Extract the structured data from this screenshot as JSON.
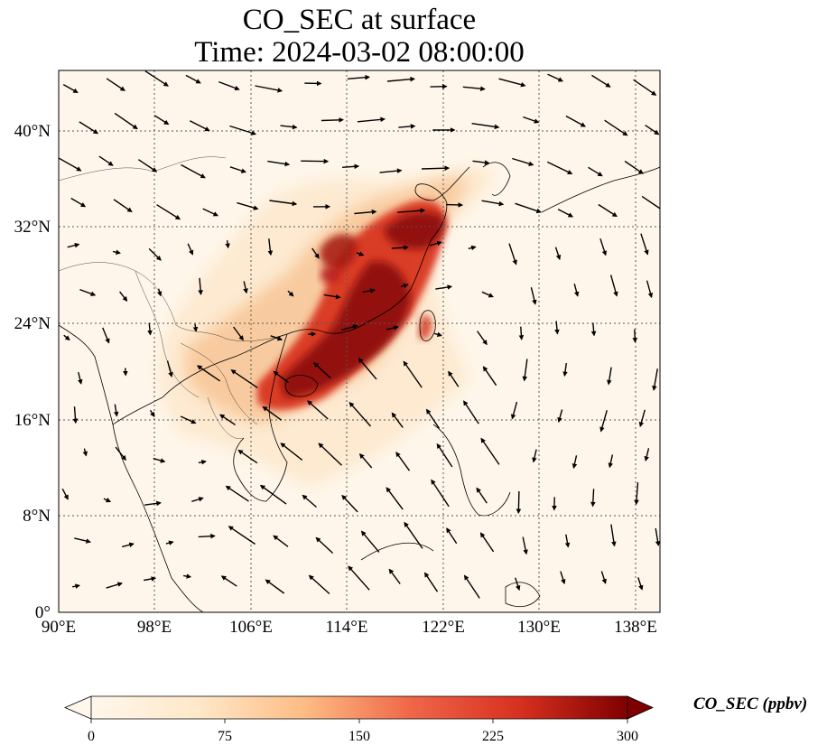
{
  "title": "CO_SEC at surface",
  "subtitle": "Time: 2024-03-02 08:00:00",
  "map": {
    "lon_range": [
      90,
      140
    ],
    "lat_range": [
      0,
      45
    ],
    "lon_ticks": [
      "90°E",
      "98°E",
      "106°E",
      "114°E",
      "122°E",
      "130°E",
      "138°E"
    ],
    "lat_ticks": [
      "0°",
      "8°N",
      "16°N",
      "24°N",
      "32°N",
      "40°N"
    ],
    "gridlines": "dotted",
    "overlay": "wind vectors",
    "colors": {
      "background": "#fef6ea",
      "low": "#fde8c8",
      "mid": "#ef7d3b",
      "high": "#7f0000",
      "coast": "#000000"
    }
  },
  "colorbar": {
    "label": "CO_SEC (ppbv)",
    "min": 0,
    "max": 300,
    "ticks": [
      "0",
      "75",
      "150",
      "225",
      "300"
    ],
    "extend": "both",
    "colormap": "OrRd"
  }
}
